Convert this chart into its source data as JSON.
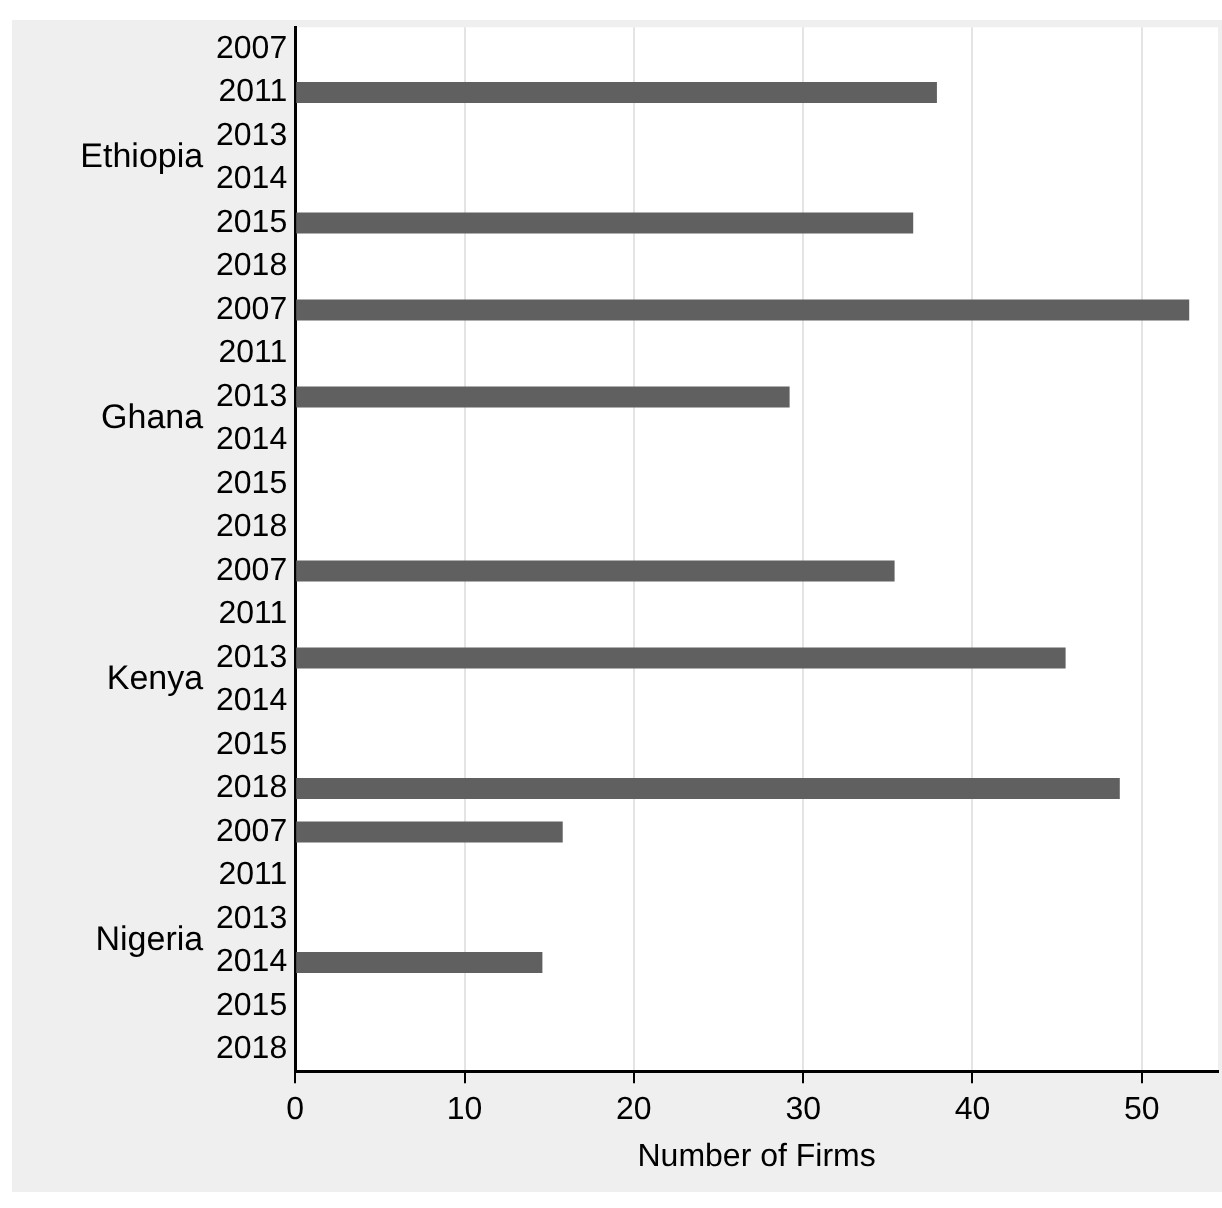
{
  "chart_data": {
    "type": "bar",
    "orientation": "horizontal",
    "xlabel": "Number of Firms",
    "categories": [
      "2007",
      "2011",
      "2013",
      "2014",
      "2015",
      "2018",
      "2007",
      "2011",
      "2013",
      "2014",
      "2015",
      "2018",
      "2007",
      "2011",
      "2013",
      "2014",
      "2015",
      "2018",
      "2007",
      "2011",
      "2013",
      "2014",
      "2015",
      "2018"
    ],
    "series": [
      {
        "name": "Ethiopia",
        "color": "#606060",
        "values": [
          null,
          37.9,
          null,
          null,
          36.5,
          null,
          null,
          null,
          null,
          null,
          null,
          null,
          null,
          null,
          null,
          null,
          null,
          null,
          null,
          null,
          null,
          null,
          null,
          null
        ]
      },
      {
        "name": "Ghana",
        "color": "#606060",
        "values": [
          null,
          null,
          null,
          null,
          null,
          null,
          52.8,
          null,
          29.2,
          null,
          null,
          null,
          null,
          null,
          null,
          null,
          null,
          null,
          null,
          null,
          null,
          null,
          null,
          null
        ]
      },
      {
        "name": "Kenya",
        "color": "#606060",
        "values": [
          null,
          null,
          null,
          null,
          null,
          null,
          null,
          null,
          null,
          null,
          null,
          null,
          35.4,
          null,
          45.5,
          null,
          null,
          48.7,
          null,
          null,
          null,
          null,
          null,
          null
        ]
      },
      {
        "name": "Nigeria",
        "color": "#606060",
        "values": [
          null,
          null,
          null,
          null,
          null,
          null,
          null,
          null,
          null,
          null,
          null,
          null,
          null,
          null,
          null,
          null,
          null,
          null,
          15.8,
          null,
          null,
          14.6,
          null,
          null
        ]
      }
    ],
    "xlim": [
      0,
      54.5
    ],
    "xticks": [
      0,
      10,
      20,
      30,
      40,
      50
    ],
    "grid": "x",
    "legend": false
  }
}
